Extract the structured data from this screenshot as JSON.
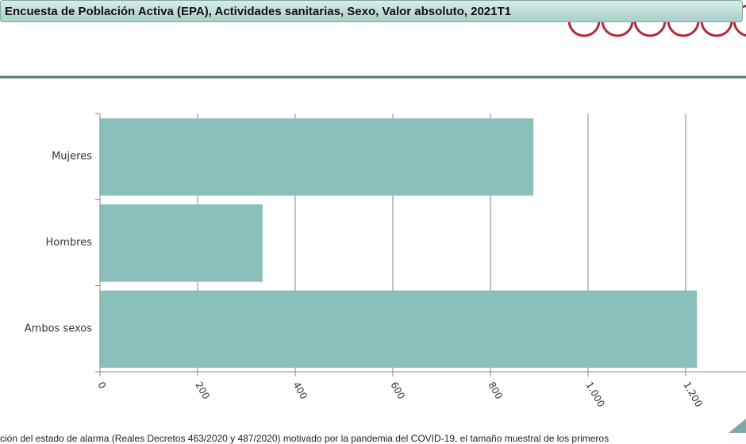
{
  "header": {
    "title": "Encuesta de Población Activa (EPA), Actividades sanitarias, Sexo, Valor absoluto, 2021T1"
  },
  "chart_data": {
    "type": "hbar",
    "categories": [
      "Mujeres",
      "Hombres",
      "Ambos sexos"
    ],
    "values": [
      888,
      333,
      1223
    ],
    "color": "#8bbfba",
    "xlim": [
      0,
      1300
    ],
    "xticks": [
      0,
      200,
      400,
      600,
      800,
      {
        "value": 1000,
        "label": "1.000"
      },
      {
        "value": 1200,
        "label": "1.200"
      }
    ],
    "grid": true
  },
  "footnote": "ción del estado de alarma (Reales Decretos 463/2020 y 487/2020) motivado por la pandemia del COVID-19, el tamaño muestral de los primeros"
}
